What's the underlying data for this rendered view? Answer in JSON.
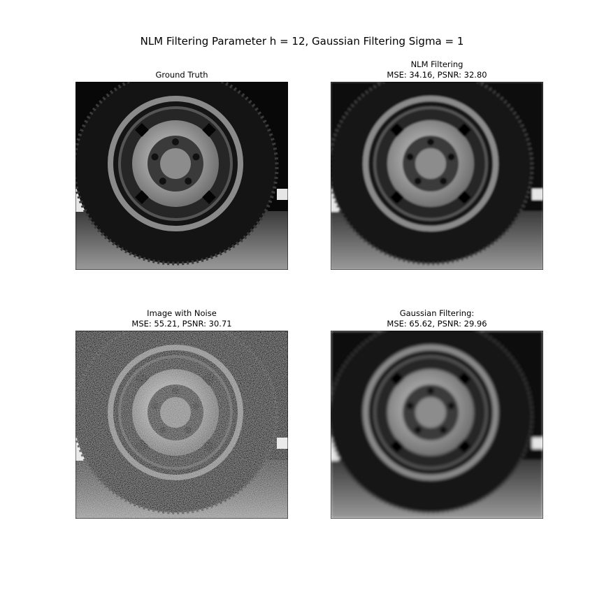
{
  "title": "NLM Filtering Parameter h = 12, Gaussian Filtering Sigma = 1",
  "panels": [
    {
      "title": [
        "Ground Truth"
      ]
    },
    {
      "title": [
        "NLM Filtering",
        "MSE: 34.16, PSNR: 32.80"
      ]
    },
    {
      "title": [
        "Image with Noise",
        "MSE: 55.21, PSNR: 30.71"
      ]
    },
    {
      "title": [
        "Gaussian Filtering:",
        "MSE: 65.62, PSNR: 29.96"
      ]
    }
  ]
}
